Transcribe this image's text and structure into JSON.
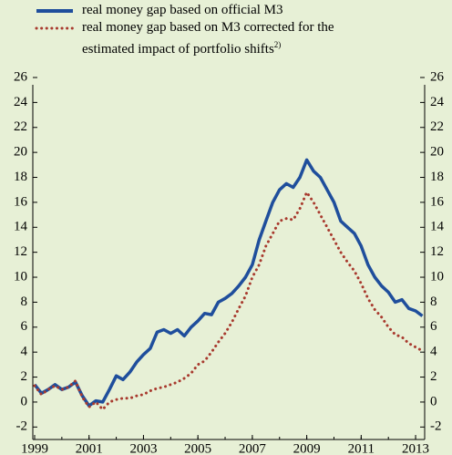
{
  "chart_data": {
    "type": "line",
    "x": [
      1999.0,
      1999.25,
      1999.5,
      1999.75,
      2000.0,
      2000.25,
      2000.5,
      2000.75,
      2001.0,
      2001.25,
      2001.5,
      2001.75,
      2002.0,
      2002.25,
      2002.5,
      2002.75,
      2003.0,
      2003.25,
      2003.5,
      2003.75,
      2004.0,
      2004.25,
      2004.5,
      2004.75,
      2005.0,
      2005.25,
      2005.5,
      2005.75,
      2006.0,
      2006.25,
      2006.5,
      2006.75,
      2007.0,
      2007.25,
      2007.5,
      2007.75,
      2008.0,
      2008.25,
      2008.5,
      2008.75,
      2009.0,
      2009.25,
      2009.5,
      2009.75,
      2010.0,
      2010.25,
      2010.5,
      2010.75,
      2011.0,
      2011.25,
      2011.5,
      2011.75,
      2012.0,
      2012.25,
      2012.5,
      2012.75,
      2013.0,
      2013.25
    ],
    "series": [
      {
        "name": "real money gap based on official M3",
        "color": "#1f4e9c",
        "style": "solid",
        "values": [
          1.4,
          0.7,
          1.0,
          1.4,
          1.0,
          1.2,
          1.6,
          0.5,
          -0.3,
          0.1,
          0.0,
          1.0,
          2.1,
          1.8,
          2.4,
          3.2,
          3.8,
          4.3,
          5.6,
          5.8,
          5.5,
          5.8,
          5.3,
          6.0,
          6.5,
          7.1,
          7.0,
          8.0,
          8.3,
          8.7,
          9.3,
          10.0,
          11.0,
          13.0,
          14.5,
          16.0,
          17.0,
          17.5,
          17.2,
          18.0,
          19.4,
          18.5,
          18.0,
          17.0,
          16.0,
          14.5,
          14.0,
          13.5,
          12.5,
          11.0,
          10.0,
          9.3,
          8.8,
          8.0,
          8.2,
          7.5,
          7.3,
          6.9
        ]
      },
      {
        "name": "real money gap based on M3 corrected for the estimated impact of portfolio shifts",
        "note": "2)",
        "color": "#a83a2e",
        "style": "dotted",
        "values": [
          1.3,
          0.6,
          1.0,
          1.3,
          1.0,
          1.2,
          1.7,
          0.4,
          -0.4,
          0.0,
          -0.6,
          0.0,
          0.2,
          0.3,
          0.3,
          0.5,
          0.6,
          0.9,
          1.1,
          1.2,
          1.4,
          1.6,
          1.9,
          2.3,
          3.0,
          3.3,
          4.0,
          4.8,
          5.5,
          6.4,
          7.5,
          8.5,
          10.0,
          11.0,
          12.5,
          13.5,
          14.5,
          14.7,
          14.6,
          15.5,
          16.8,
          16.0,
          15.0,
          14.0,
          13.0,
          12.0,
          11.2,
          10.5,
          9.5,
          8.3,
          7.4,
          6.8,
          6.0,
          5.4,
          5.2,
          4.7,
          4.4,
          4.1
        ]
      }
    ],
    "xlim": [
      1999,
      2013.4
    ],
    "xticks": [
      1999,
      2001,
      2003,
      2005,
      2007,
      2009,
      2011,
      2013
    ],
    "ylim": [
      -3,
      26
    ],
    "yticks": [
      -2,
      0,
      2,
      4,
      6,
      8,
      10,
      12,
      14,
      16,
      18,
      20,
      22,
      24,
      26
    ],
    "mirror_y_axis": true
  }
}
